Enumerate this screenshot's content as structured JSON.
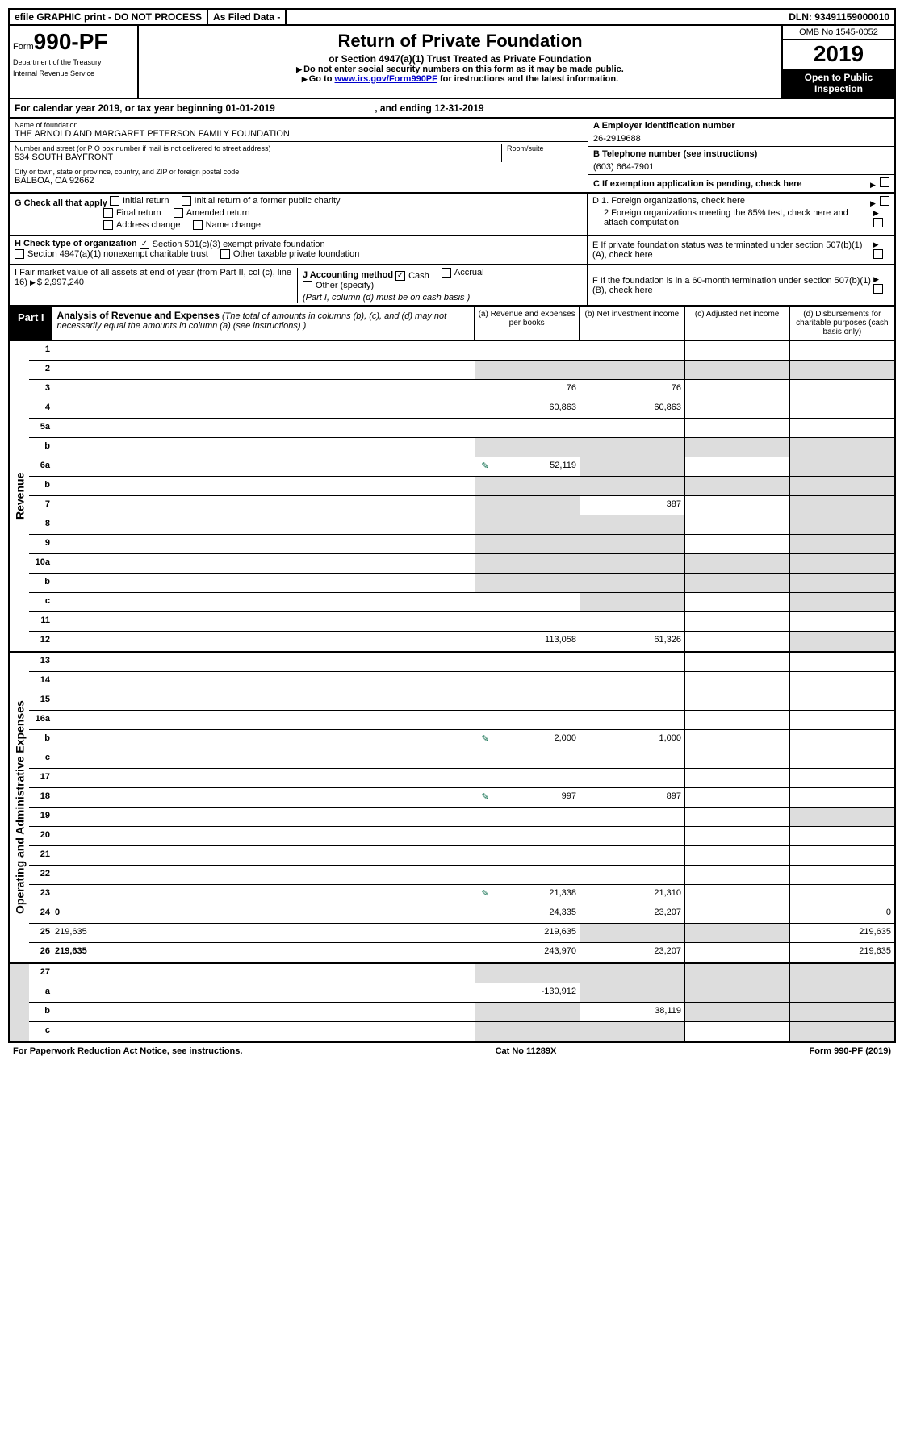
{
  "topbar": {
    "efile": "efile GRAPHIC print - DO NOT PROCESS",
    "asfiled": "As Filed Data -",
    "dln": "DLN: 93491159000010"
  },
  "header": {
    "form_prefix": "Form",
    "form_number": "990-PF",
    "dept": [
      "Department of the Treasury",
      "Internal Revenue Service"
    ],
    "title": "Return of Private Foundation",
    "subtitle": "or Section 4947(a)(1) Trust Treated as Private Foundation",
    "notice1": "Do not enter social security numbers on this form as it may be made public.",
    "notice2_pre": "Go to ",
    "notice2_link": "www.irs.gov/Form990PF",
    "notice2_post": " for instructions and the latest information.",
    "omb": "OMB No 1545-0052",
    "year": "2019",
    "open": "Open to Public Inspection"
  },
  "calendar": {
    "text1": "For calendar year 2019, or tax year beginning ",
    "begin": "01-01-2019",
    "text2": ", and ending ",
    "end": "12-31-2019"
  },
  "name": {
    "label": "Name of foundation",
    "value": "THE ARNOLD AND MARGARET PETERSON FAMILY FOUNDATION"
  },
  "street": {
    "label": "Number and street (or P O  box number if mail is not delivered to street address)",
    "value": "534 SOUTH BAYFRONT",
    "room": "Room/suite"
  },
  "city": {
    "label": "City or town, state or province, country, and ZIP or foreign postal code",
    "value": "BALBOA, CA  92662"
  },
  "A": {
    "label": "A Employer identification number",
    "value": "26-2919688"
  },
  "B": {
    "label": "B Telephone number (see instructions)",
    "value": "(603) 664-7901"
  },
  "C": {
    "label": "C If exemption application is pending, check here"
  },
  "D": {
    "d1": "D 1. Foreign organizations, check here",
    "d2": "2 Foreign organizations meeting the 85% test, check here and attach computation"
  },
  "E": {
    "label": "E  If private foundation status was terminated under section 507(b)(1)(A), check here"
  },
  "F": {
    "label": "F  If the foundation is in a 60-month termination under section 507(b)(1)(B), check here"
  },
  "G": {
    "label": "G Check all that apply",
    "opts": [
      "Initial return",
      "Initial return of a former public charity",
      "Final return",
      "Amended return",
      "Address change",
      "Name change"
    ]
  },
  "H": {
    "label": "H Check type of organization",
    "opt1": "Section 501(c)(3) exempt private foundation",
    "opt1_checked": true,
    "opt2": "Section 4947(a)(1) nonexempt charitable trust",
    "opt3": "Other taxable private foundation"
  },
  "I": {
    "label": "I Fair market value of all assets at end of year (from Part II, col  (c), line 16)",
    "value": "$  2,997,240"
  },
  "J": {
    "label": "J Accounting method",
    "opts": [
      "Cash",
      "Accrual",
      "Other (specify)"
    ],
    "checked": "Cash",
    "note": "(Part I, column (d) must be on cash basis )"
  },
  "part1": {
    "tag": "Part I",
    "title": "Analysis of Revenue and Expenses",
    "desc": "(The total of amounts in columns (b), (c), and (d) may not necessarily equal the amounts in column (a) (see instructions) )",
    "cols": [
      "(a)   Revenue and expenses per books",
      "(b) Net investment income",
      "(c) Adjusted net income",
      "(d) Disbursements for charitable purposes (cash basis only)"
    ]
  },
  "section_labels": {
    "rev": "Revenue",
    "exp": "Operating and Administrative Expenses"
  },
  "rows_revenue": [
    {
      "n": "1",
      "d": "",
      "a": "",
      "b": "",
      "c": ""
    },
    {
      "n": "2",
      "d": "",
      "a": "",
      "b": "",
      "c": "",
      "b_grey": true,
      "c_grey": true,
      "d_grey": true,
      "a_grey": true
    },
    {
      "n": "3",
      "d": "",
      "a": "76",
      "b": "76",
      "c": ""
    },
    {
      "n": "4",
      "d": "",
      "a": "60,863",
      "b": "60,863",
      "c": ""
    },
    {
      "n": "5a",
      "d": "",
      "a": "",
      "b": "",
      "c": ""
    },
    {
      "n": "b",
      "d": "",
      "a": "",
      "b": "",
      "c": "",
      "a_grey": true,
      "b_grey": true,
      "c_grey": true,
      "d_grey": true
    },
    {
      "n": "6a",
      "d": "",
      "icon": true,
      "a": "52,119",
      "b": "",
      "c": "",
      "b_grey": true,
      "d_grey": true
    },
    {
      "n": "b",
      "d": "",
      "a": "",
      "b": "",
      "c": "",
      "a_grey": true,
      "b_grey": true,
      "c_grey": true,
      "d_grey": true
    },
    {
      "n": "7",
      "d": "",
      "a": "",
      "b": "387",
      "c": "",
      "a_grey": true,
      "d_grey": true
    },
    {
      "n": "8",
      "d": "",
      "a": "",
      "b": "",
      "c": "",
      "a_grey": true,
      "b_grey": true,
      "d_grey": true
    },
    {
      "n": "9",
      "d": "",
      "a": "",
      "b": "",
      "c": "",
      "a_grey": true,
      "b_grey": true,
      "d_grey": true
    },
    {
      "n": "10a",
      "d": "",
      "a": "",
      "b": "",
      "c": "",
      "a_grey": true,
      "b_grey": true,
      "c_grey": true,
      "d_grey": true
    },
    {
      "n": "b",
      "d": "",
      "a": "",
      "b": "",
      "c": "",
      "a_grey": true,
      "b_grey": true,
      "c_grey": true,
      "d_grey": true
    },
    {
      "n": "c",
      "d": "",
      "a": "",
      "b": "",
      "c": "",
      "b_grey": true,
      "d_grey": true
    },
    {
      "n": "11",
      "d": "",
      "a": "",
      "b": "",
      "c": ""
    },
    {
      "n": "12",
      "d": "",
      "bold": true,
      "a": "113,058",
      "b": "61,326",
      "c": "",
      "d_grey": true
    }
  ],
  "rows_expenses": [
    {
      "n": "13",
      "d": "",
      "a": "",
      "b": "",
      "c": ""
    },
    {
      "n": "14",
      "d": "",
      "a": "",
      "b": "",
      "c": ""
    },
    {
      "n": "15",
      "d": "",
      "a": "",
      "b": "",
      "c": ""
    },
    {
      "n": "16a",
      "d": "",
      "a": "",
      "b": "",
      "c": ""
    },
    {
      "n": "b",
      "d": "",
      "icon": true,
      "a": "2,000",
      "b": "1,000",
      "c": ""
    },
    {
      "n": "c",
      "d": "",
      "a": "",
      "b": "",
      "c": ""
    },
    {
      "n": "17",
      "d": "",
      "a": "",
      "b": "",
      "c": ""
    },
    {
      "n": "18",
      "d": "",
      "icon": true,
      "a": "997",
      "b": "897",
      "c": ""
    },
    {
      "n": "19",
      "d": "",
      "a": "",
      "b": "",
      "c": "",
      "d_grey": true
    },
    {
      "n": "20",
      "d": "",
      "a": "",
      "b": "",
      "c": ""
    },
    {
      "n": "21",
      "d": "",
      "a": "",
      "b": "",
      "c": ""
    },
    {
      "n": "22",
      "d": "",
      "a": "",
      "b": "",
      "c": ""
    },
    {
      "n": "23",
      "d": "",
      "icon": true,
      "a": "21,338",
      "b": "21,310",
      "c": ""
    },
    {
      "n": "24",
      "d": "0",
      "bold": true,
      "a": "24,335",
      "b": "23,207",
      "c": ""
    },
    {
      "n": "25",
      "d": "219,635",
      "a": "219,635",
      "b": "",
      "c": "",
      "b_grey": true,
      "c_grey": true
    },
    {
      "n": "26",
      "d": "219,635",
      "bold": true,
      "a": "243,970",
      "b": "23,207",
      "c": ""
    }
  ],
  "rows_bottom": [
    {
      "n": "27",
      "d": "",
      "a": "",
      "b": "",
      "c": "",
      "a_grey": true,
      "b_grey": true,
      "c_grey": true,
      "d_grey": true
    },
    {
      "n": "a",
      "d": "",
      "bold": true,
      "a": "-130,912",
      "b": "",
      "c": "",
      "b_grey": true,
      "c_grey": true,
      "d_grey": true
    },
    {
      "n": "b",
      "d": "",
      "bold": true,
      "a": "",
      "b": "38,119",
      "c": "",
      "a_grey": true,
      "c_grey": true,
      "d_grey": true
    },
    {
      "n": "c",
      "d": "",
      "bold": true,
      "a": "",
      "b": "",
      "c": "",
      "a_grey": true,
      "b_grey": true,
      "d_grey": true
    }
  ],
  "footer": {
    "left": "For Paperwork Reduction Act Notice, see instructions.",
    "mid": "Cat  No  11289X",
    "right": "Form 990-PF (2019)"
  }
}
